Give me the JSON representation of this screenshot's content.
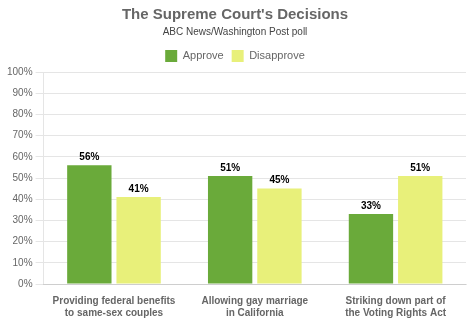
{
  "chart_data": {
    "type": "bar",
    "title": "The Supreme Court's Decisions",
    "subtitle": "ABC News/Washington Post poll",
    "categories": [
      "Providing federal benefits\nto same-sex couples",
      "Allowing gay marriage\nin California",
      "Striking down part of\nthe Voting Rights Act"
    ],
    "series": [
      {
        "name": "Approve",
        "color": "#6aaa3a",
        "values": [
          56,
          51,
          33
        ],
        "value_labels": [
          "56%",
          "51%",
          "33%"
        ]
      },
      {
        "name": "Disapprove",
        "color": "#e8f07a",
        "values": [
          41,
          45,
          51
        ],
        "value_labels": [
          "41%",
          "45%",
          "51%"
        ]
      }
    ],
    "ylim": [
      0,
      100
    ],
    "yticks": [
      {
        "value": 0,
        "label": "0%"
      },
      {
        "value": 10,
        "label": "10%"
      },
      {
        "value": 20,
        "label": "20%"
      },
      {
        "value": 30,
        "label": "30%"
      },
      {
        "value": 40,
        "label": "40%"
      },
      {
        "value": 50,
        "label": "50%"
      },
      {
        "value": 60,
        "label": "60%"
      },
      {
        "value": 70,
        "label": "70%"
      },
      {
        "value": 80,
        "label": "80%"
      },
      {
        "value": 90,
        "label": "90%"
      },
      {
        "value": 100,
        "label": "100%"
      }
    ],
    "grid": true,
    "legend": "top",
    "data_labels": true
  }
}
